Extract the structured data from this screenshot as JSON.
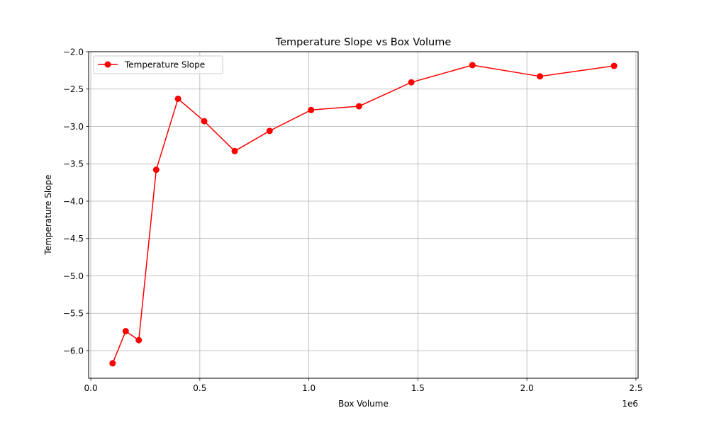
{
  "chart_data": {
    "type": "line",
    "title": "Temperature Slope vs Box Volume",
    "xlabel": "Box Volume",
    "ylabel": "Temperature Slope",
    "x_offset_label": "1e6",
    "xlim": [
      -0.01,
      2.51
    ],
    "ylim": [
      -6.37,
      -2.0
    ],
    "x_ticks": [
      0.0,
      0.5,
      1.0,
      1.5,
      2.0,
      2.5
    ],
    "x_tick_labels": [
      "0.0",
      "0.5",
      "1.0",
      "1.5",
      "2.0",
      "2.5"
    ],
    "y_ticks": [
      -2.0,
      -2.5,
      -3.0,
      -3.5,
      -4.0,
      -4.5,
      -5.0,
      -5.5,
      -6.0
    ],
    "y_tick_labels": [
      "−2.0",
      "−2.5",
      "−3.0",
      "−3.5",
      "−4.0",
      "−4.5",
      "−5.0",
      "−5.5",
      "−6.0"
    ],
    "grid": true,
    "legend_position": "top-left",
    "series": [
      {
        "name": "Temperature Slope",
        "color": "#ff0000",
        "marker": "circle",
        "x": [
          0.1,
          0.16,
          0.22,
          0.3,
          0.4,
          0.52,
          0.66,
          0.82,
          1.01,
          1.23,
          1.47,
          1.75,
          2.06,
          2.4
        ],
        "y": [
          -6.17,
          -5.74,
          -5.86,
          -3.58,
          -2.63,
          -2.93,
          -3.33,
          -3.06,
          -2.78,
          -2.73,
          -2.41,
          -2.18,
          -2.33,
          -2.19
        ]
      }
    ]
  }
}
